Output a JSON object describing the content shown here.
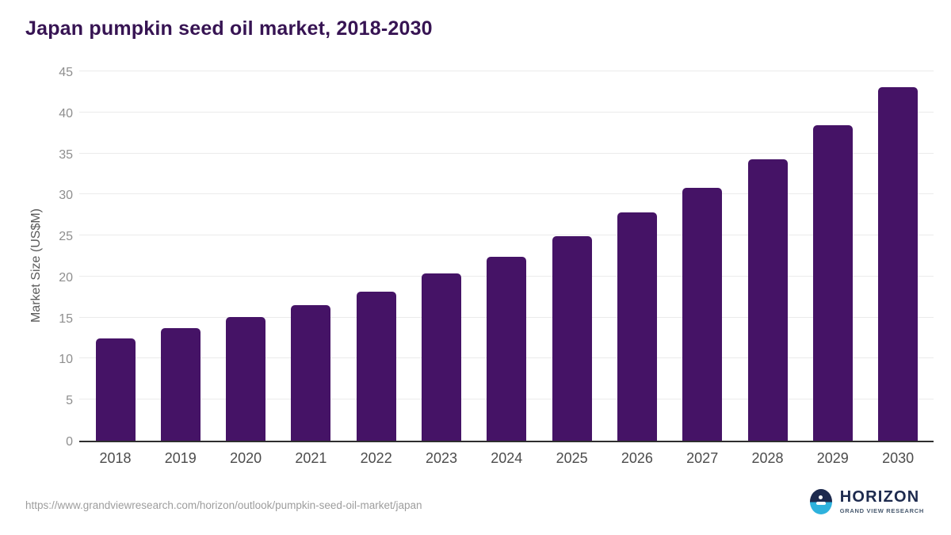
{
  "title": "Japan pumpkin seed oil market, 2018-2030",
  "chart_data": {
    "type": "bar",
    "title": "Japan pumpkin seed oil market, 2018-2030",
    "categories": [
      "2018",
      "2019",
      "2020",
      "2021",
      "2022",
      "2023",
      "2024",
      "2025",
      "2026",
      "2027",
      "2028",
      "2029",
      "2030"
    ],
    "values": [
      12.5,
      13.7,
      15.1,
      16.5,
      18.2,
      20.4,
      22.4,
      24.9,
      27.8,
      30.8,
      34.3,
      38.4,
      43.1
    ],
    "xlabel": "",
    "ylabel": "Market Size (US$M)",
    "ylim": [
      0,
      45
    ],
    "yticks": [
      0,
      5,
      10,
      15,
      20,
      25,
      30,
      35,
      40,
      45
    ],
    "grid": true,
    "legend": "none",
    "bar_color": "#451366"
  },
  "footer": {
    "source_url": "https://www.grandviewresearch.com/horizon/outlook/pumpkin-seed-oil-market/japan",
    "logo_title": "HORIZON",
    "logo_subtitle": "GRAND VIEW RESEARCH"
  },
  "colors": {
    "title": "#371453",
    "bar": "#451366",
    "gridline": "#ebebeb",
    "axis_line": "#2e2e2e",
    "y_tick_label": "#8e8e8e",
    "x_tick_label": "#4c4c4c",
    "source_url": "#9d9d9d",
    "logo_navy": "#1d2a4e",
    "logo_cyan": "#2eb2dd"
  }
}
